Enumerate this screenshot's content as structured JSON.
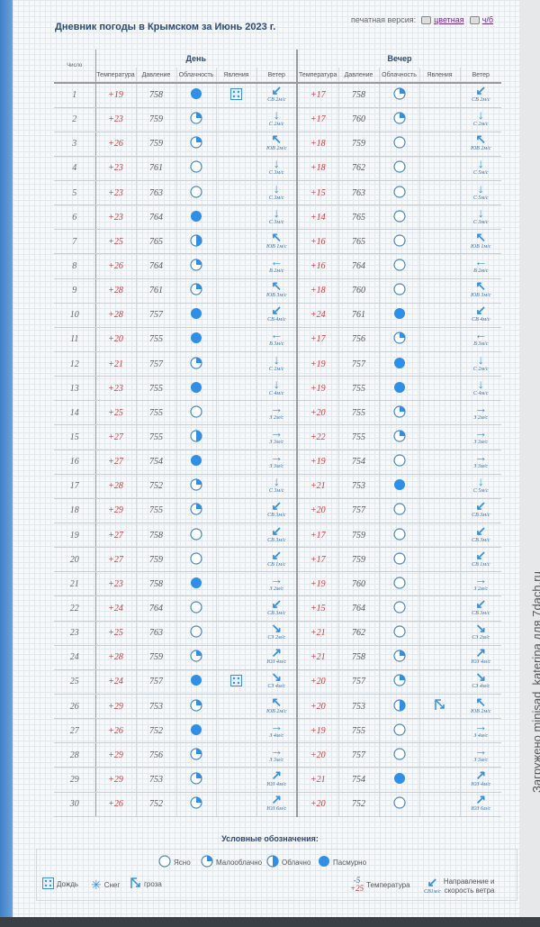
{
  "title": "Дневник погоды в Крымском за Июнь 2023 г.",
  "print": {
    "label": "печатная версия:",
    "color": "цветная",
    "bw": "ч/б"
  },
  "watermark": "Загружено minisad_katerina для 7dach.ru",
  "colors": {
    "accent": "#2f8ee6",
    "temp": "#d0393b",
    "title": "#2d4a73"
  },
  "header": {
    "day_col": "Число",
    "day": "День",
    "evening": "Вечер",
    "cols": [
      "Температура",
      "Давление",
      "Облачность",
      "Явления",
      "Ветер"
    ]
  },
  "units": "м/с",
  "rows": [
    {
      "d": "1",
      "day": [
        "+19",
        "758",
        "o",
        "rain",
        "СВ",
        "2"
      ],
      "eve": [
        "+17",
        "758",
        "p",
        "",
        "СВ",
        "2"
      ]
    },
    {
      "d": "2",
      "day": [
        "+23",
        "759",
        "p",
        "",
        "С",
        "2"
      ],
      "eve": [
        "+17",
        "760",
        "p",
        "",
        "С",
        "2"
      ]
    },
    {
      "d": "3",
      "day": [
        "+26",
        "759",
        "p",
        "",
        "ЮВ",
        "2"
      ],
      "eve": [
        "+18",
        "759",
        "c",
        "",
        "ЮВ",
        "2"
      ]
    },
    {
      "d": "4",
      "day": [
        "+23",
        "761",
        "c",
        "",
        "С",
        "3"
      ],
      "eve": [
        "+18",
        "762",
        "c",
        "",
        "С",
        "5"
      ]
    },
    {
      "d": "5",
      "day": [
        "+23",
        "763",
        "c",
        "",
        "С",
        "3"
      ],
      "eve": [
        "+15",
        "763",
        "c",
        "",
        "С",
        "5"
      ]
    },
    {
      "d": "6",
      "day": [
        "+23",
        "764",
        "o",
        "",
        "С",
        "3"
      ],
      "eve": [
        "+14",
        "765",
        "c",
        "",
        "С",
        "3"
      ]
    },
    {
      "d": "7",
      "day": [
        "+25",
        "765",
        "h",
        "",
        "ЮВ",
        "1"
      ],
      "eve": [
        "+16",
        "765",
        "c",
        "",
        "ЮВ",
        "1"
      ]
    },
    {
      "d": "8",
      "day": [
        "+26",
        "764",
        "p",
        "",
        "В",
        "2"
      ],
      "eve": [
        "+16",
        "764",
        "c",
        "",
        "В",
        "2"
      ]
    },
    {
      "d": "9",
      "day": [
        "+28",
        "761",
        "p",
        "",
        "ЮВ",
        "3"
      ],
      "eve": [
        "+18",
        "760",
        "c",
        "",
        "ЮВ",
        "3"
      ]
    },
    {
      "d": "10",
      "day": [
        "+28",
        "757",
        "o",
        "",
        "СВ",
        "4"
      ],
      "eve": [
        "+24",
        "761",
        "o",
        "",
        "СВ",
        "4"
      ]
    },
    {
      "d": "11",
      "day": [
        "+20",
        "755",
        "o",
        "",
        "В",
        "3"
      ],
      "eve": [
        "+17",
        "756",
        "p",
        "",
        "В",
        "3"
      ]
    },
    {
      "d": "12",
      "day": [
        "+21",
        "757",
        "p",
        "",
        "С",
        "2"
      ],
      "eve": [
        "+19",
        "757",
        "o",
        "",
        "С",
        "2"
      ]
    },
    {
      "d": "13",
      "day": [
        "+23",
        "755",
        "o",
        "",
        "С",
        "4"
      ],
      "eve": [
        "+19",
        "755",
        "o",
        "",
        "С",
        "4"
      ]
    },
    {
      "d": "14",
      "day": [
        "+25",
        "755",
        "c",
        "",
        "З",
        "2"
      ],
      "eve": [
        "+20",
        "755",
        "p",
        "",
        "З",
        "2"
      ]
    },
    {
      "d": "15",
      "day": [
        "+27",
        "755",
        "h",
        "",
        "З",
        "3"
      ],
      "eve": [
        "+22",
        "755",
        "p",
        "",
        "З",
        "3"
      ]
    },
    {
      "d": "16",
      "day": [
        "+27",
        "754",
        "o",
        "",
        "З",
        "3"
      ],
      "eve": [
        "+19",
        "754",
        "c",
        "",
        "З",
        "3"
      ]
    },
    {
      "d": "17",
      "day": [
        "+28",
        "752",
        "p",
        "",
        "С",
        "3"
      ],
      "eve": [
        "+21",
        "753",
        "o",
        "",
        "С",
        "5"
      ]
    },
    {
      "d": "18",
      "day": [
        "+29",
        "755",
        "p",
        "",
        "СВ",
        "3"
      ],
      "eve": [
        "+20",
        "757",
        "c",
        "",
        "СВ",
        "3"
      ]
    },
    {
      "d": "19",
      "day": [
        "+27",
        "758",
        "c",
        "",
        "СВ",
        "3"
      ],
      "eve": [
        "+17",
        "759",
        "c",
        "",
        "СВ",
        "3"
      ]
    },
    {
      "d": "20",
      "day": [
        "+27",
        "759",
        "c",
        "",
        "СВ",
        "1"
      ],
      "eve": [
        "+17",
        "759",
        "c",
        "",
        "СВ",
        "1"
      ]
    },
    {
      "d": "21",
      "day": [
        "+23",
        "758",
        "o",
        "",
        "З",
        "2"
      ],
      "eve": [
        "+19",
        "760",
        "c",
        "",
        "З",
        "2"
      ]
    },
    {
      "d": "22",
      "day": [
        "+24",
        "764",
        "c",
        "",
        "СВ",
        "3"
      ],
      "eve": [
        "+15",
        "764",
        "c",
        "",
        "СВ",
        "3"
      ]
    },
    {
      "d": "23",
      "day": [
        "+25",
        "763",
        "c",
        "",
        "СЗ",
        "2"
      ],
      "eve": [
        "+21",
        "762",
        "c",
        "",
        "СЗ",
        "2"
      ]
    },
    {
      "d": "24",
      "day": [
        "+28",
        "759",
        "p",
        "",
        "ЮЗ",
        "4"
      ],
      "eve": [
        "+21",
        "758",
        "p",
        "",
        "ЮЗ",
        "4"
      ]
    },
    {
      "d": "25",
      "day": [
        "+24",
        "757",
        "o",
        "rain",
        "СЗ",
        "4"
      ],
      "eve": [
        "+20",
        "757",
        "p",
        "",
        "СЗ",
        "4"
      ]
    },
    {
      "d": "26",
      "day": [
        "+29",
        "753",
        "p",
        "",
        "ЮВ",
        "2"
      ],
      "eve": [
        "+20",
        "753",
        "h",
        "thunder",
        "ЮВ",
        "2"
      ]
    },
    {
      "d": "27",
      "day": [
        "+26",
        "752",
        "o",
        "",
        "З",
        "4"
      ],
      "eve": [
        "+19",
        "755",
        "c",
        "",
        "З",
        "4"
      ]
    },
    {
      "d": "28",
      "day": [
        "+29",
        "756",
        "p",
        "",
        "З",
        "3"
      ],
      "eve": [
        "+20",
        "757",
        "c",
        "",
        "З",
        "3"
      ]
    },
    {
      "d": "29",
      "day": [
        "+29",
        "753",
        "p",
        "",
        "ЮЗ",
        "4"
      ],
      "eve": [
        "+21",
        "754",
        "o",
        "",
        "ЮЗ",
        "4"
      ]
    },
    {
      "d": "30",
      "day": [
        "+26",
        "752",
        "p",
        "",
        "ЮЗ",
        "6"
      ],
      "eve": [
        "+20",
        "752",
        "c",
        "",
        "ЮЗ",
        "6"
      ]
    }
  ],
  "legend": {
    "title": "Условные обозначения:",
    "clear": "Ясно",
    "partly": "Малооблачно",
    "cloudy": "Облачно",
    "overcast": "Пасмурно",
    "rain": "Дождь",
    "snow": "Снег",
    "thunder": "гроза",
    "temp": "Температура",
    "temp_sample_a": "-5",
    "temp_sample_b": "+25",
    "wind": "Направление и",
    "wind2": "скорость ветра",
    "wind_sample": "СВ1м/с"
  }
}
